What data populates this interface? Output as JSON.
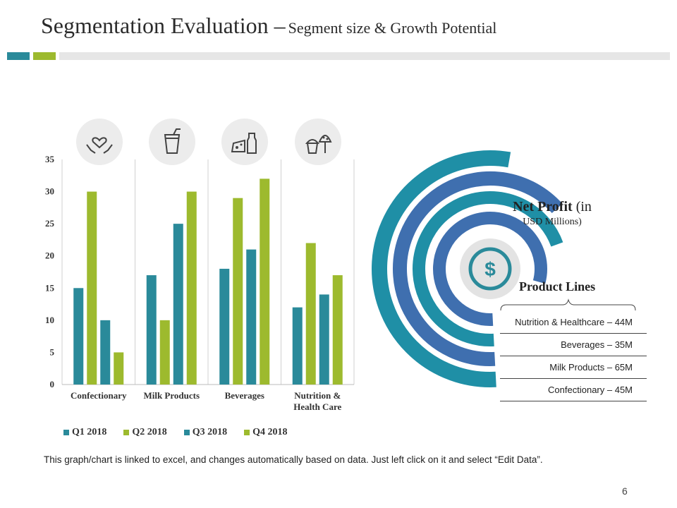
{
  "header": {
    "title_main": "Segmentation Evaluation –",
    "title_sub": "Segment size & Growth Potential"
  },
  "colors": {
    "teal": "#2a8a9a",
    "green": "#9dba2e",
    "strip_gray": "#e6e6e6",
    "ring_outer": "#1f8fa6",
    "ring_blue": "#3f6faf",
    "icon_bg": "#ececec",
    "icon_teal": "#2a8a9a"
  },
  "icons": [
    "heart-hands-icon",
    "drink-cup-icon",
    "cheese-milk-icon",
    "cupcake-icon"
  ],
  "chart_data": [
    {
      "type": "bar",
      "categories": [
        "Confectionary",
        "Milk Products",
        "Beverages",
        "Nutrition & Health Care"
      ],
      "category_labels_lines": [
        [
          "Confectionary"
        ],
        [
          "Milk Products"
        ],
        [
          "Beverages"
        ],
        [
          "Nutrition &",
          "Health Care"
        ]
      ],
      "series": [
        {
          "name": "Q1 2018",
          "values": [
            15,
            17,
            18,
            12
          ],
          "color": "#2a8a9a"
        },
        {
          "name": "Q2 2018",
          "values": [
            30,
            10,
            29,
            22
          ],
          "color": "#9dba2e"
        },
        {
          "name": "Q3 2018",
          "values": [
            10,
            25,
            21,
            14
          ],
          "color": "#2a8a9a"
        },
        {
          "name": "Q4 2018",
          "values": [
            5,
            30,
            32,
            17
          ],
          "color": "#9dba2e"
        }
      ],
      "ylim": [
        0,
        35
      ],
      "yticks": [
        0,
        5,
        10,
        15,
        20,
        25,
        30,
        35
      ],
      "title": "",
      "xlabel": "",
      "ylabel": "",
      "legend": "bottom"
    },
    {
      "type": "pie",
      "title": "Net Profit (in USD Millions)",
      "categories": [
        "Nutrition & Healthcare",
        "Beverages",
        "Milk Products",
        "Confectionary"
      ],
      "values": [
        44,
        35,
        65,
        45
      ],
      "unit": "M",
      "legend": "right"
    }
  ],
  "net_profit": {
    "bold": "Net Profit",
    "rest": " (in",
    "line2": "USD Millions)"
  },
  "product_lines": {
    "title": "Product Lines",
    "items": [
      "Nutrition & Healthcare – 44M",
      "Beverages – 35M",
      "Milk Products  – 65M",
      "Confectionary – 45M"
    ]
  },
  "footnote": "This graph/chart is linked to excel, and changes automatically  based on data. Just left click on it and select “Edit Data”.",
  "page_number": "6"
}
